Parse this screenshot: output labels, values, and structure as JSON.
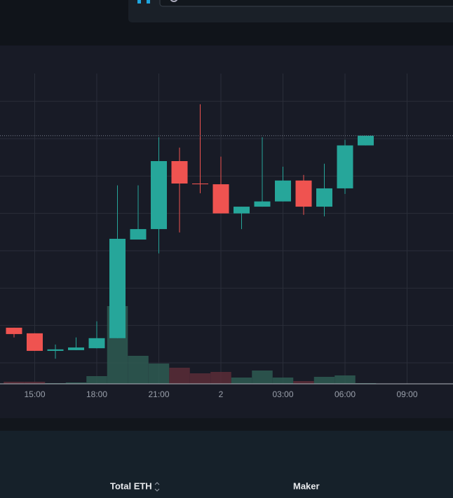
{
  "chart_data": {
    "type": "candlestick",
    "categories": [
      null,
      "15:00",
      null,
      null,
      "18:00",
      null,
      null,
      "21:00",
      null,
      null,
      "2",
      null,
      null,
      "03:00",
      null,
      null,
      "06:00",
      null,
      null,
      "09:00"
    ],
    "open": [
      1.94,
      1.79,
      1.32,
      1.34,
      1.39,
      1.66,
      4.3,
      4.58,
      6.4,
      5.8,
      5.78,
      5.0,
      5.18,
      5.32,
      5.88,
      5.18,
      5.67,
      6.82,
      null,
      null
    ],
    "high": [
      1.94,
      1.79,
      1.49,
      1.68,
      2.11,
      5.75,
      5.75,
      7.04,
      6.76,
      7.92,
      6.52,
      5.18,
      7.04,
      6.25,
      6.03,
      6.33,
      6.97,
      7.08,
      null,
      null
    ],
    "low": [
      1.68,
      1.32,
      1.11,
      1.34,
      1.39,
      1.66,
      4.3,
      3.93,
      4.49,
      5.54,
      5.0,
      4.58,
      5.18,
      5.32,
      4.96,
      4.92,
      5.52,
      6.82,
      null,
      null
    ],
    "close": [
      1.77,
      1.32,
      1.36,
      1.41,
      1.66,
      4.32,
      4.58,
      6.4,
      5.8,
      5.78,
      5.0,
      5.18,
      5.32,
      5.88,
      5.18,
      5.67,
      6.82,
      7.08,
      null,
      null
    ],
    "volume": [
      3,
      3,
      1,
      2,
      11,
      111,
      40,
      29,
      23,
      15,
      17,
      9,
      19,
      9,
      4,
      10,
      12,
      1,
      null,
      null
    ],
    "ylim": [
      0.4,
      8.8
    ],
    "ygrid": [
      1,
      2,
      3,
      4,
      5,
      6,
      7,
      8
    ],
    "vlim": [
      0,
      120
    ],
    "up_color": "#26a69a",
    "down_color": "#ef5350",
    "volume_up_color": "#2e5b52",
    "volume_down_color": "#5b2b37",
    "grid": true
  },
  "table": {
    "columns": [
      "Total ETH",
      "Maker"
    ]
  }
}
